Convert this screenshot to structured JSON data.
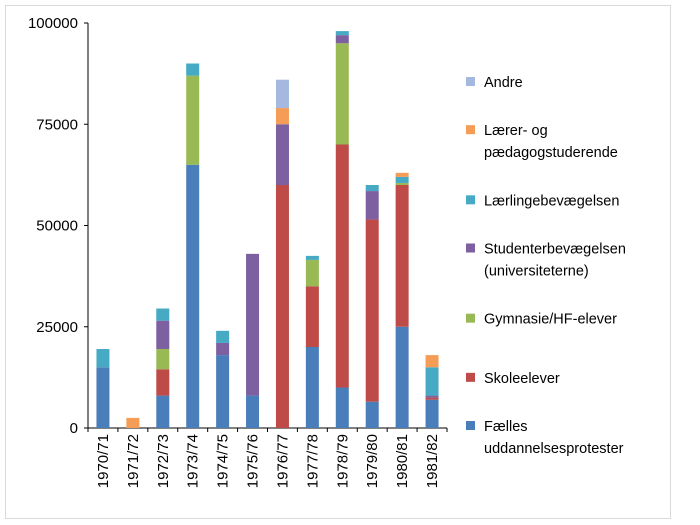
{
  "chart_data": {
    "type": "bar",
    "stacked": true,
    "categories": [
      "1970/71",
      "1971/72",
      "1972/73",
      "1973/74",
      "1974/75",
      "1975/76",
      "1976/77",
      "1977/78",
      "1978/79",
      "1979/80",
      "1980/81",
      "1981/82"
    ],
    "ylim": [
      0,
      100000
    ],
    "yticks": [
      "0",
      "25000",
      "50000",
      "75000",
      "100000"
    ],
    "grid": false,
    "legend_position": "right",
    "series": [
      {
        "name": "Fælles uddannelsesprotester",
        "legend_lines": [
          "Fælles",
          "uddannelsesprotester"
        ],
        "color": "#4a7ebb",
        "values": [
          15000,
          0,
          8000,
          65000,
          18000,
          8000,
          0,
          20000,
          10000,
          6500,
          25000,
          7000
        ]
      },
      {
        "name": "Skoleelever",
        "legend_lines": [
          "Skoleelever"
        ],
        "color": "#be4b48",
        "values": [
          0,
          0,
          6500,
          0,
          0,
          0,
          60000,
          15000,
          60000,
          45000,
          35000,
          500
        ]
      },
      {
        "name": "Gymnasie/HF-elever",
        "legend_lines": [
          "Gymnasie/HF-elever"
        ],
        "color": "#98b954",
        "values": [
          0,
          0,
          5000,
          22000,
          0,
          0,
          0,
          6500,
          25000,
          0,
          500,
          0
        ]
      },
      {
        "name": "Studenterbevægelsen (universiteterne)",
        "legend_lines": [
          "Studenterbevægelsen",
          "(universiteterne)"
        ],
        "color": "#7d60a0",
        "values": [
          0,
          0,
          7000,
          0,
          3000,
          35000,
          15000,
          0,
          2000,
          7000,
          0,
          500
        ]
      },
      {
        "name": "Lærlingebevægelsen",
        "legend_lines": [
          "Lærlingebevægelsen"
        ],
        "color": "#46aac5",
        "values": [
          4500,
          0,
          3000,
          3000,
          3000,
          0,
          0,
          1000,
          1000,
          1500,
          1500,
          7000
        ]
      },
      {
        "name": "Lærer- og pædagogstuderende",
        "legend_lines": [
          "Lærer- og",
          "pædagogstuderende"
        ],
        "color": "#f59d56",
        "values": [
          0,
          2500,
          0,
          0,
          0,
          0,
          4000,
          0,
          0,
          0,
          1000,
          3000
        ]
      },
      {
        "name": "Andre",
        "legend_lines": [
          "Andre"
        ],
        "color": "#a5b9e0",
        "values": [
          0,
          0,
          0,
          0,
          0,
          0,
          7000,
          0,
          0,
          0,
          0,
          0
        ]
      }
    ]
  }
}
